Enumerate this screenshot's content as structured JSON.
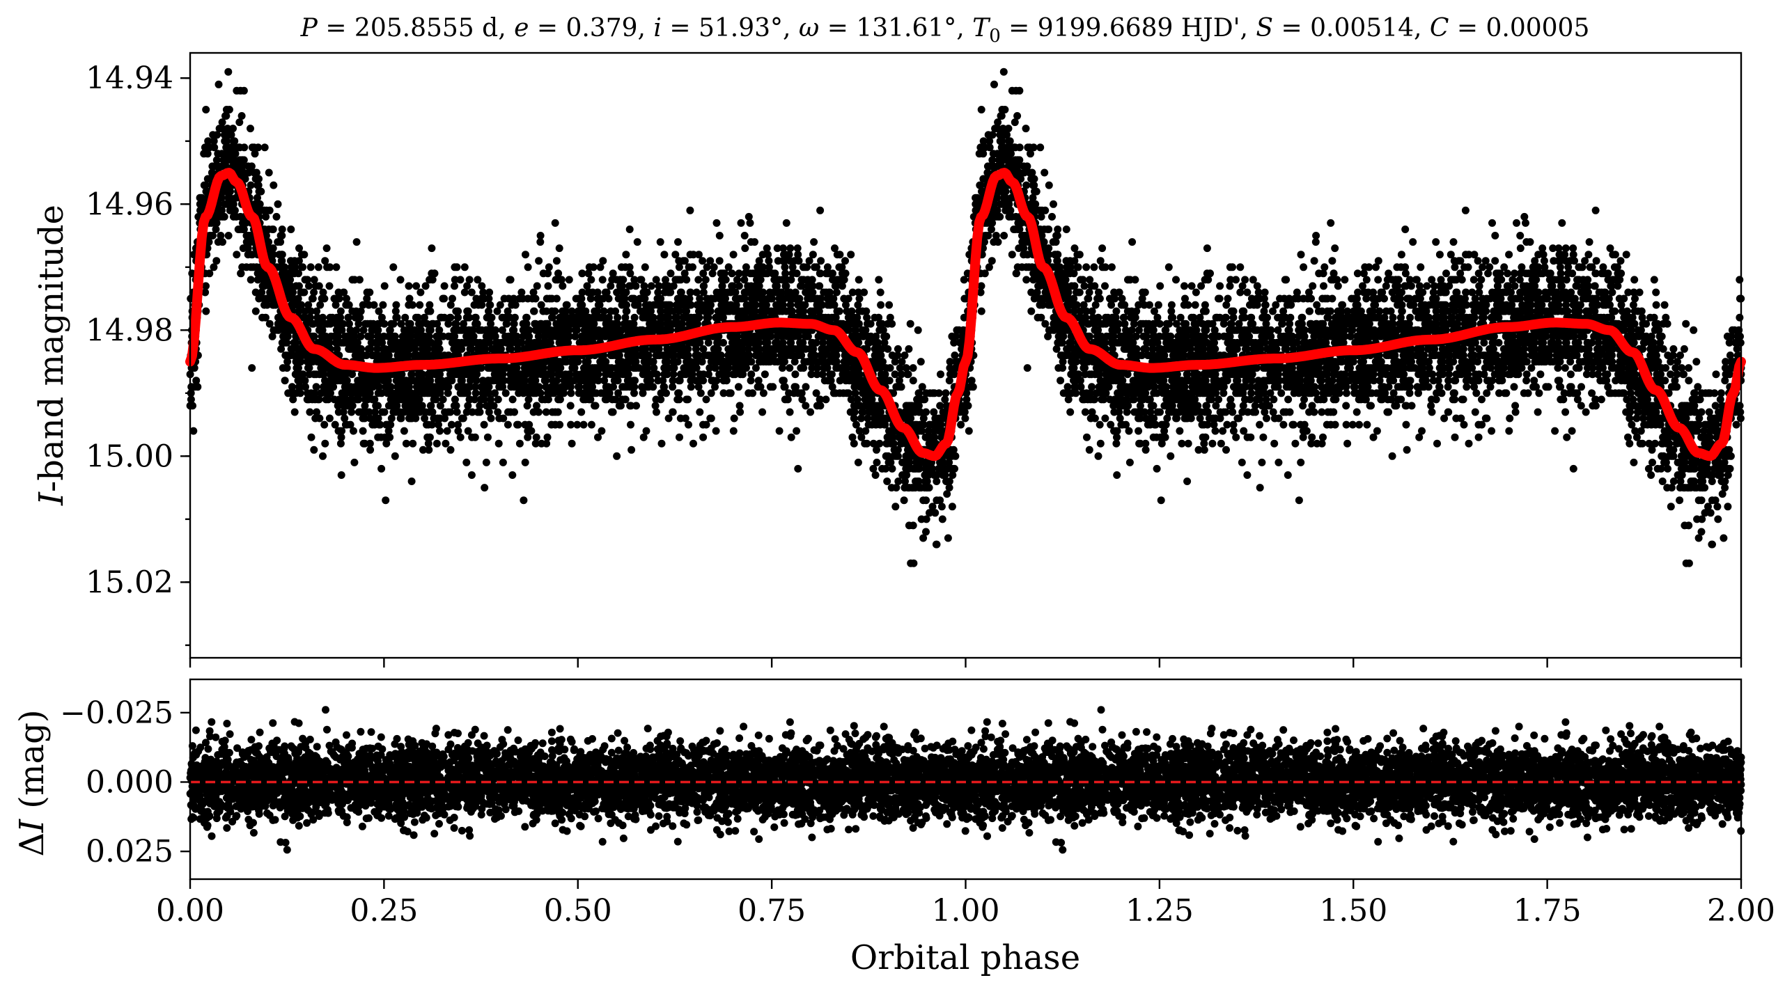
{
  "chart_data": [
    {
      "type": "scatter",
      "title": "P = 205.8555 d, e = 0.379, i = 51.93°, ω = 131.61°, T0 = 9199.6689 HJD', S = 0.00514, C = 0.00005",
      "title_parts": {
        "P": "205.8555 d",
        "e": "0.379",
        "i": "51.93°",
        "omega": "131.61°",
        "T0": "9199.6689 HJD'",
        "S": "0.00514",
        "C": "0.00005"
      },
      "xlabel": "",
      "ylabel": "I-band magnitude",
      "ylabel_italic": "I",
      "ylabel_rest": "-band magnitude",
      "xlim": [
        0,
        2
      ],
      "ylim": [
        15.032,
        14.936
      ],
      "y_inverted": true,
      "yticks": [
        14.94,
        14.96,
        14.98,
        15.0,
        15.02
      ],
      "ytick_labels": [
        "14.94",
        "14.96",
        "14.98",
        "15.00",
        "15.02"
      ],
      "xticks": [
        0,
        0.25,
        0.5,
        0.75,
        1.0,
        1.25,
        1.5,
        1.75,
        2.0
      ],
      "grid": false,
      "series": [
        {
          "kind": "scatter",
          "color": "#000000",
          "n_points_per_cycle": 4600,
          "scatter_sigma": 0.008
        },
        {
          "kind": "line",
          "color": "#ff0000",
          "x": [
            0.0,
            0.02,
            0.04,
            0.05,
            0.06,
            0.08,
            0.1,
            0.13,
            0.16,
            0.2,
            0.24,
            0.3,
            0.4,
            0.5,
            0.6,
            0.7,
            0.76,
            0.8,
            0.83,
            0.86,
            0.89,
            0.92,
            0.945,
            0.96,
            0.975,
            0.99,
            1.0
          ],
          "y": [
            14.985,
            14.962,
            14.9555,
            14.955,
            14.9565,
            14.962,
            14.97,
            14.978,
            14.983,
            14.9855,
            14.986,
            14.9855,
            14.9845,
            14.9832,
            14.9815,
            14.9795,
            14.9788,
            14.979,
            14.98,
            14.9835,
            14.9895,
            14.9955,
            14.9995,
            15.0,
            14.998,
            14.99,
            14.985
          ]
        }
      ]
    },
    {
      "type": "scatter",
      "xlabel": "Orbital phase",
      "ylabel": "ΔI (mag)",
      "ylabel_delta": "Δ",
      "ylabel_italic": "I",
      "ylabel_rest": " (mag)",
      "xlim": [
        0,
        2
      ],
      "ylim": [
        0.035,
        -0.037
      ],
      "y_inverted": true,
      "yticks": [
        -0.025,
        0.0,
        0.025
      ],
      "ytick_labels": [
        "−0.025",
        "0.000",
        "0.025"
      ],
      "xticks": [
        0,
        0.25,
        0.5,
        0.75,
        1.0,
        1.25,
        1.5,
        1.75,
        2.0
      ],
      "xtick_labels": [
        "0.00",
        "0.25",
        "0.50",
        "0.75",
        "1.00",
        "1.25",
        "1.50",
        "1.75",
        "2.00"
      ],
      "grid": false,
      "series": [
        {
          "kind": "scatter",
          "color": "#000000",
          "n_points_per_cycle": 4600,
          "scatter_sigma": 0.0075
        },
        {
          "kind": "hline",
          "y": 0.0,
          "color": "#e31a1c",
          "style": "dashed"
        }
      ]
    }
  ]
}
